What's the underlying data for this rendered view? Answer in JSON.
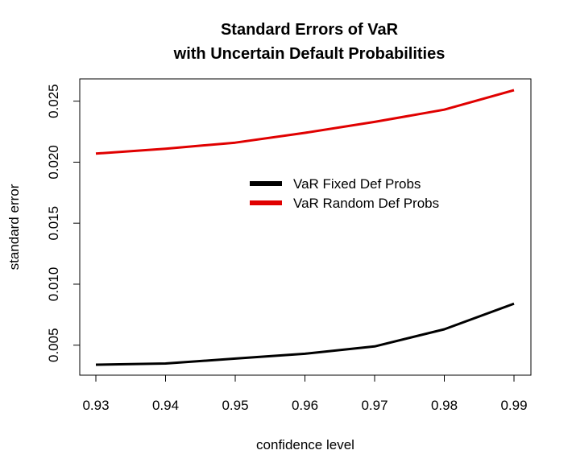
{
  "chart_data": {
    "type": "line",
    "title": [
      "Standard Errors of VaR",
      "with Uncertain Default Probabilities"
    ],
    "xlabel": "confidence level",
    "ylabel": "standard error",
    "x": [
      0.93,
      0.94,
      0.95,
      0.96,
      0.97,
      0.98,
      0.99
    ],
    "x_tick_labels": [
      "0.93",
      "0.94",
      "0.95",
      "0.96",
      "0.97",
      "0.98",
      "0.99"
    ],
    "y_ticks": [
      0.005,
      0.01,
      0.015,
      0.02,
      0.025
    ],
    "y_tick_labels": [
      "0.005",
      "0.010",
      "0.015",
      "0.020",
      "0.025"
    ],
    "xlim": [
      0.93,
      0.99
    ],
    "ylim": [
      0.0034,
      0.0259
    ],
    "grid": false,
    "legend_position": "center",
    "series": [
      {
        "name": "VaR Fixed Def Probs",
        "color": "#000000",
        "values": [
          0.0034,
          0.0035,
          0.0039,
          0.0043,
          0.0049,
          0.0063,
          0.0084
        ]
      },
      {
        "name": "VaR Random Def Probs",
        "color": "#e00000",
        "values": [
          0.0207,
          0.0211,
          0.0216,
          0.0224,
          0.0233,
          0.0243,
          0.0259
        ]
      }
    ]
  }
}
